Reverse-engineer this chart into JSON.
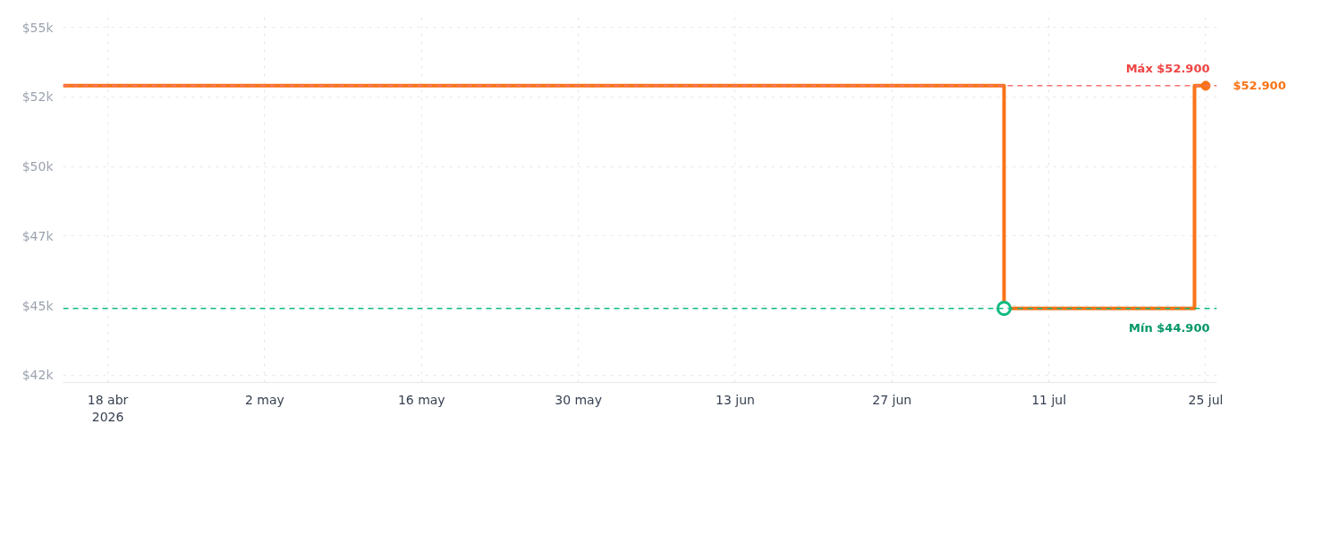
{
  "chart_data": {
    "type": "step",
    "x": [
      "2026-04-14",
      "2026-07-07",
      "2026-07-24",
      "2026-07-25"
    ],
    "series": [
      {
        "color": "#f97316",
        "values": [
          52900,
          44900,
          52900,
          52900
        ]
      }
    ],
    "xlim": [
      "2026-04-14",
      "2026-07-26"
    ],
    "xticks": [
      {
        "value": "2026-04-18",
        "label": "18 abr\n2026"
      },
      {
        "value": "2026-05-02",
        "label": "2 may"
      },
      {
        "value": "2026-05-16",
        "label": "16 may"
      },
      {
        "value": "2026-05-30",
        "label": "30 may"
      },
      {
        "value": "2026-06-13",
        "label": "13 jun"
      },
      {
        "value": "2026-06-27",
        "label": "27 jun"
      },
      {
        "value": "2026-07-11",
        "label": "11 jul"
      },
      {
        "value": "2026-07-25",
        "label": "25 jul"
      }
    ],
    "ylim": [
      42240,
      55580
    ],
    "yticks": [
      {
        "value": 42500,
        "label": "$42k"
      },
      {
        "value": 45000,
        "label": "$45k"
      },
      {
        "value": 47500,
        "label": "$47k"
      },
      {
        "value": 50000,
        "label": "$50k"
      },
      {
        "value": 52500,
        "label": "$52k"
      },
      {
        "value": 55000,
        "label": "$55k"
      }
    ],
    "grid": true,
    "ref_lines": [
      {
        "axis": "y",
        "value": 52900,
        "label": "Máx $52.900",
        "color": "#f87171",
        "line_style": "dashed"
      },
      {
        "axis": "y",
        "value": 44900,
        "label": "Mín $44.900",
        "color": "#10b981",
        "line_style": "dashed"
      }
    ],
    "annotations": [
      {
        "text": "$52.900",
        "x": "2026-07-25",
        "y": 52900
      }
    ]
  }
}
